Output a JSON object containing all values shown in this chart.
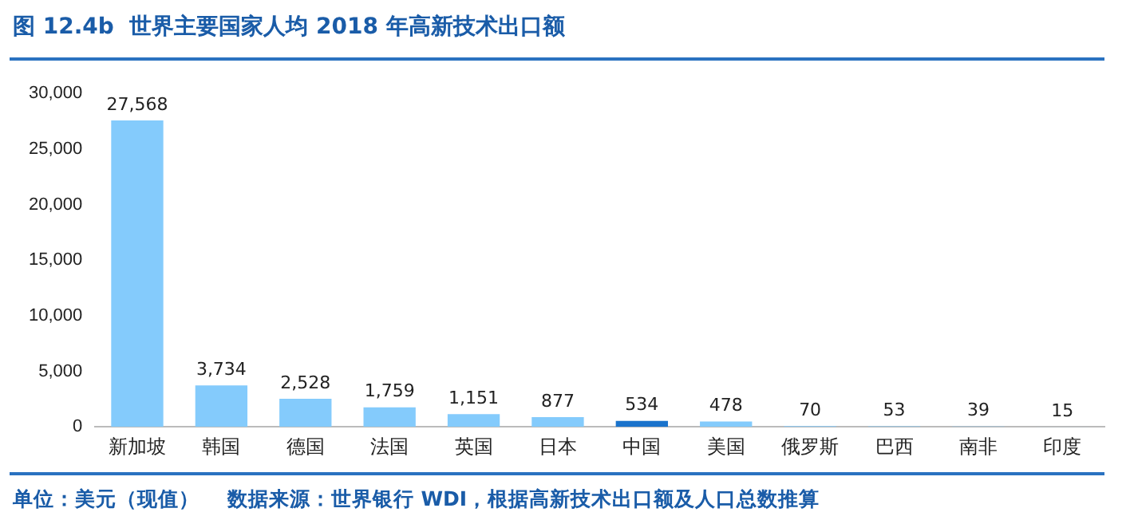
{
  "chart_data": {
    "type": "bar",
    "title": "图 12.4b  世界主要国家人均 2018 年高新技术出口额",
    "categories": [
      "新加坡",
      "韩国",
      "德国",
      "法国",
      "英国",
      "日本",
      "中国",
      "美国",
      "俄罗斯",
      "巴西",
      "南非",
      "印度"
    ],
    "values": [
      27568,
      3734,
      2528,
      1759,
      1151,
      877,
      534,
      478,
      70,
      53,
      39,
      15
    ],
    "colors": [
      "#84cbfc",
      "#84cbfc",
      "#84cbfc",
      "#84cbfc",
      "#84cbfc",
      "#84cbfc",
      "#1a73cc",
      "#84cbfc",
      "#84cbfc",
      "#84cbfc",
      "#84cbfc",
      "#84cbfc"
    ],
    "value_labels": [
      "27,568",
      "3,734",
      "2,528",
      "1,759",
      "1,151",
      "877",
      "534",
      "478",
      "70",
      "53",
      "39",
      "15"
    ],
    "ylim": [
      0,
      30000
    ],
    "yticks": [
      0,
      {
        "value": 5000,
        "label": "5,000"
      },
      {
        "value": 10000,
        "label": "10,000"
      },
      {
        "value": 15000,
        "label": "15,000"
      },
      {
        "value": 20000,
        "label": "20,000"
      },
      {
        "value": 25000,
        "label": "25,000"
      },
      {
        "value": 30000,
        "label": "30,000"
      }
    ],
    "grid": false,
    "legend": false,
    "annotations": [
      "单位：美元（现值）    数据来源：世界银行 WDI，根据高新技术出口额及人口总数推算"
    ]
  }
}
